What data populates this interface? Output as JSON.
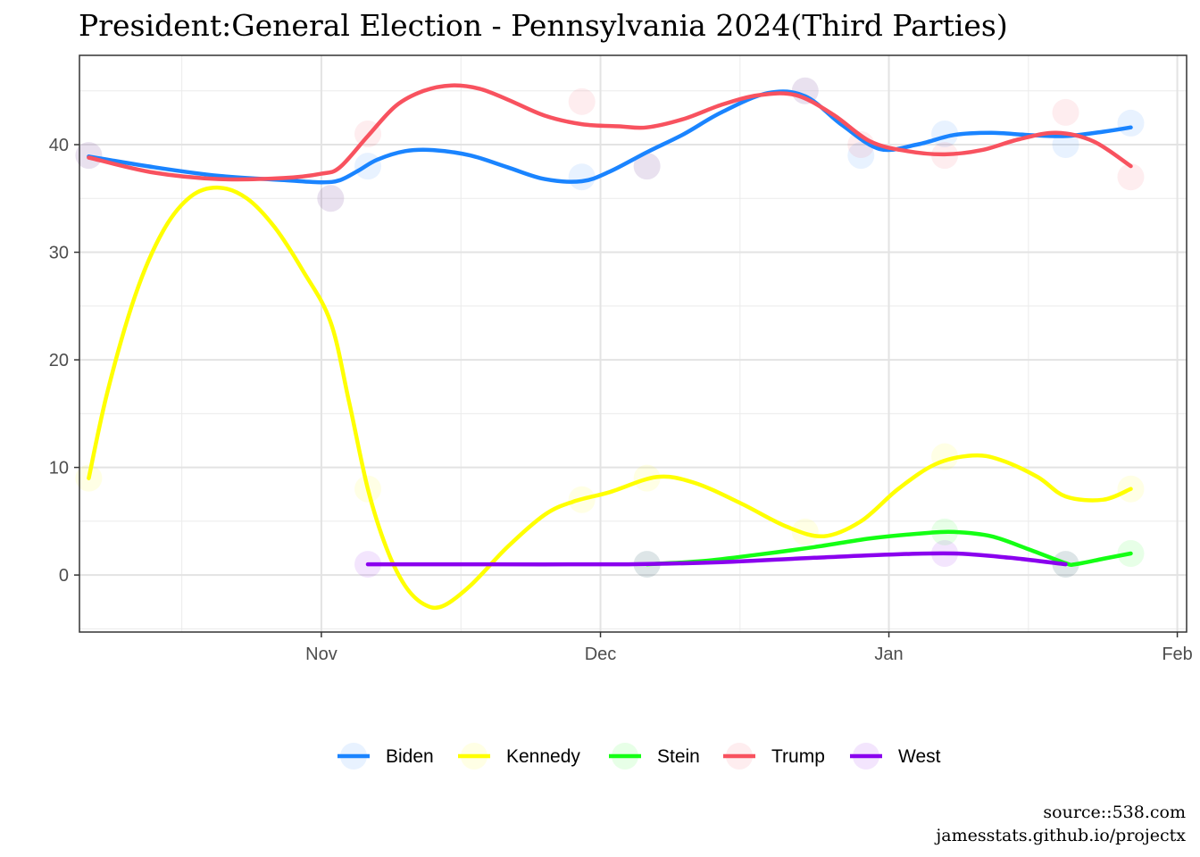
{
  "chart_data": {
    "type": "line",
    "title": "President:General Election - Pennsylvania 2024(Third Parties)",
    "xlabel": "",
    "ylabel": "",
    "x_tick_labels": [
      {
        "date": "2023-11-01",
        "label": "Nov"
      },
      {
        "date": "2023-12-01",
        "label": "Dec"
      },
      {
        "date": "2024-01-01",
        "label": "Jan"
      },
      {
        "date": "2024-02-01",
        "label": "Feb"
      }
    ],
    "y_ticks": [
      0,
      10,
      20,
      30,
      40
    ],
    "xlim": [
      "2023-10-06",
      "2024-02-02"
    ],
    "ylim": [
      -5.3,
      48.3
    ],
    "grid": true,
    "legend_position": "bottom",
    "series": [
      {
        "name": "Biden",
        "color": "#1a84ff",
        "points": [
          [
            "2023-10-07",
            39
          ],
          [
            "2023-11-02",
            35
          ],
          [
            "2023-11-06",
            38
          ],
          [
            "2023-11-29",
            37
          ],
          [
            "2023-12-06",
            38
          ],
          [
            "2023-12-23",
            45
          ],
          [
            "2023-12-29",
            39
          ],
          [
            "2024-01-07",
            41
          ],
          [
            "2024-01-20",
            40
          ],
          [
            "2024-01-27",
            42
          ]
        ],
        "trend": [
          [
            "2023-10-07",
            38.9
          ],
          [
            "2023-10-14",
            37.9
          ],
          [
            "2023-10-21",
            37.1
          ],
          [
            "2023-10-28",
            36.7
          ],
          [
            "2023-11-01",
            36.5
          ],
          [
            "2023-11-03",
            36.7
          ],
          [
            "2023-11-05",
            37.6
          ],
          [
            "2023-11-07",
            38.6
          ],
          [
            "2023-11-10",
            39.4
          ],
          [
            "2023-11-13",
            39.5
          ],
          [
            "2023-11-17",
            39
          ],
          [
            "2023-11-21",
            37.9
          ],
          [
            "2023-11-25",
            36.8
          ],
          [
            "2023-11-29",
            36.6
          ],
          [
            "2023-12-02",
            37.5
          ],
          [
            "2023-12-06",
            39.3
          ],
          [
            "2023-12-10",
            41
          ],
          [
            "2023-12-14",
            43
          ],
          [
            "2023-12-19",
            44.8
          ],
          [
            "2023-12-23",
            44.5
          ],
          [
            "2023-12-27",
            41.8
          ],
          [
            "2023-12-31",
            39.6
          ],
          [
            "2024-01-04",
            40
          ],
          [
            "2024-01-08",
            40.9
          ],
          [
            "2024-01-12",
            41.1
          ],
          [
            "2024-01-16",
            40.9
          ],
          [
            "2024-01-20",
            40.8
          ],
          [
            "2024-01-24",
            41.2
          ],
          [
            "2024-01-27",
            41.6
          ]
        ]
      },
      {
        "name": "Kennedy",
        "color": "#ffff00",
        "points": [
          [
            "2023-10-07",
            9
          ],
          [
            "2023-11-06",
            8
          ],
          [
            "2023-11-29",
            7
          ],
          [
            "2023-12-06",
            9
          ],
          [
            "2023-12-23",
            4
          ],
          [
            "2024-01-07",
            11
          ],
          [
            "2024-01-27",
            8
          ]
        ],
        "trend": [
          [
            "2023-10-07",
            9
          ],
          [
            "2023-10-09",
            17
          ],
          [
            "2023-10-12",
            26
          ],
          [
            "2023-10-15",
            32
          ],
          [
            "2023-10-18",
            35.2
          ],
          [
            "2023-10-21",
            36
          ],
          [
            "2023-10-24",
            35
          ],
          [
            "2023-10-27",
            32.3
          ],
          [
            "2023-10-30",
            28.3
          ],
          [
            "2023-11-02",
            23.5
          ],
          [
            "2023-11-04",
            16
          ],
          [
            "2023-11-06",
            8
          ],
          [
            "2023-11-08",
            2.5
          ],
          [
            "2023-11-10",
            -1
          ],
          [
            "2023-11-12",
            -2.7
          ],
          [
            "2023-11-14",
            -2.9
          ],
          [
            "2023-11-17",
            -1
          ],
          [
            "2023-11-21",
            2.6
          ],
          [
            "2023-11-25",
            5.6
          ],
          [
            "2023-11-28",
            6.8
          ],
          [
            "2023-12-02",
            7.7
          ],
          [
            "2023-12-07",
            9.1
          ],
          [
            "2023-12-11",
            8.6
          ],
          [
            "2023-12-16",
            6.7
          ],
          [
            "2023-12-21",
            4.5
          ],
          [
            "2023-12-25",
            3.6
          ],
          [
            "2023-12-29",
            5
          ],
          [
            "2024-01-02",
            8
          ],
          [
            "2024-01-06",
            10.3
          ],
          [
            "2024-01-10",
            11.1
          ],
          [
            "2024-01-13",
            10.7
          ],
          [
            "2024-01-17",
            9.1
          ],
          [
            "2024-01-20",
            7.3
          ],
          [
            "2024-01-24",
            7
          ],
          [
            "2024-01-27",
            8
          ]
        ]
      },
      {
        "name": "Stein",
        "color": "#14ff14",
        "points": [
          [
            "2023-12-06",
            1
          ],
          [
            "2024-01-07",
            4
          ],
          [
            "2024-01-20",
            1
          ],
          [
            "2024-01-27",
            2
          ]
        ],
        "trend": [
          [
            "2023-12-06",
            1
          ],
          [
            "2023-12-12",
            1.3
          ],
          [
            "2023-12-18",
            1.9
          ],
          [
            "2023-12-24",
            2.6
          ],
          [
            "2023-12-30",
            3.4
          ],
          [
            "2024-01-05",
            3.9
          ],
          [
            "2024-01-08",
            4
          ],
          [
            "2024-01-12",
            3.6
          ],
          [
            "2024-01-16",
            2.4
          ],
          [
            "2024-01-20",
            1.1
          ],
          [
            "2024-01-21",
            1
          ],
          [
            "2024-01-24",
            1.5
          ],
          [
            "2024-01-27",
            2
          ]
        ]
      },
      {
        "name": "Trump",
        "color": "#f8525f",
        "points": [
          [
            "2023-10-07",
            39
          ],
          [
            "2023-11-02",
            35
          ],
          [
            "2023-11-06",
            41
          ],
          [
            "2023-11-29",
            44
          ],
          [
            "2023-12-06",
            38
          ],
          [
            "2023-12-23",
            45
          ],
          [
            "2023-12-29",
            40
          ],
          [
            "2024-01-07",
            39
          ],
          [
            "2024-01-20",
            43
          ],
          [
            "2024-01-27",
            37
          ]
        ],
        "trend": [
          [
            "2023-10-07",
            38.8
          ],
          [
            "2023-10-14",
            37.4
          ],
          [
            "2023-10-21",
            36.8
          ],
          [
            "2023-10-28",
            36.9
          ],
          [
            "2023-11-01",
            37.3
          ],
          [
            "2023-11-03",
            37.9
          ],
          [
            "2023-11-06",
            40.8
          ],
          [
            "2023-11-09",
            43.6
          ],
          [
            "2023-11-12",
            45
          ],
          [
            "2023-11-15",
            45.5
          ],
          [
            "2023-11-18",
            45.2
          ],
          [
            "2023-11-21",
            44.2
          ],
          [
            "2023-11-25",
            42.7
          ],
          [
            "2023-11-29",
            41.9
          ],
          [
            "2023-12-03",
            41.7
          ],
          [
            "2023-12-06",
            41.6
          ],
          [
            "2023-12-10",
            42.4
          ],
          [
            "2023-12-14",
            43.7
          ],
          [
            "2023-12-18",
            44.6
          ],
          [
            "2023-12-22",
            44.6
          ],
          [
            "2023-12-26",
            42.8
          ],
          [
            "2023-12-30",
            40.3
          ],
          [
            "2024-01-03",
            39.4
          ],
          [
            "2024-01-07",
            39.1
          ],
          [
            "2024-01-11",
            39.5
          ],
          [
            "2024-01-15",
            40.5
          ],
          [
            "2024-01-19",
            41.1
          ],
          [
            "2024-01-23",
            40.3
          ],
          [
            "2024-01-27",
            38
          ]
        ]
      },
      {
        "name": "West",
        "color": "#8a00ee",
        "points": [
          [
            "2023-11-06",
            1
          ],
          [
            "2023-12-06",
            1
          ],
          [
            "2024-01-07",
            2
          ],
          [
            "2024-01-20",
            1
          ]
        ],
        "trend": [
          [
            "2023-11-06",
            1
          ],
          [
            "2023-11-20",
            1
          ],
          [
            "2023-12-04",
            1
          ],
          [
            "2023-12-14",
            1.2
          ],
          [
            "2023-12-24",
            1.6
          ],
          [
            "2024-01-01",
            1.9
          ],
          [
            "2024-01-08",
            2
          ],
          [
            "2024-01-14",
            1.6
          ],
          [
            "2024-01-20",
            1
          ]
        ]
      }
    ]
  },
  "source_line1": "source::538.com",
  "source_line2": "jamesstats.github.io/projectx"
}
